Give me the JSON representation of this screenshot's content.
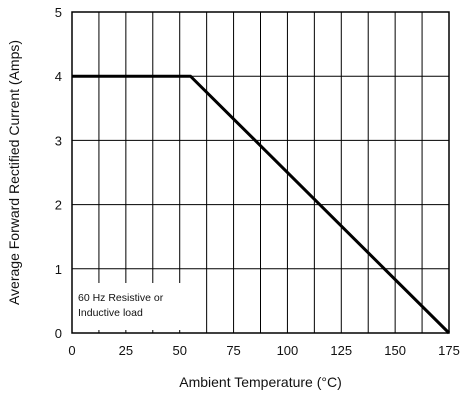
{
  "chart_data": {
    "type": "line",
    "xlabel": "Ambient Temperature (°C)",
    "ylabel": "Average Forward Rectified Current (Amps)",
    "xlim": [
      0,
      175
    ],
    "ylim": [
      0,
      5
    ],
    "x_ticks": [
      0,
      25,
      50,
      75,
      100,
      125,
      150,
      175
    ],
    "x_tick_labels": [
      "0",
      "25",
      "50",
      "75",
      "100",
      "125",
      "150",
      "175"
    ],
    "y_ticks": [
      0,
      1,
      2,
      3,
      4,
      5
    ],
    "y_tick_labels": [
      "0",
      "1",
      "2",
      "3",
      "4",
      "5"
    ],
    "x_minor_step": 12.5,
    "grid": true,
    "series": [
      {
        "x": [
          0,
          55,
          175
        ],
        "y": [
          4,
          4,
          0
        ]
      }
    ],
    "annotation": [
      "60 Hz Resistive or",
      "Inductive load"
    ],
    "colors": {
      "line": "#000000",
      "grid": "#000000"
    }
  }
}
